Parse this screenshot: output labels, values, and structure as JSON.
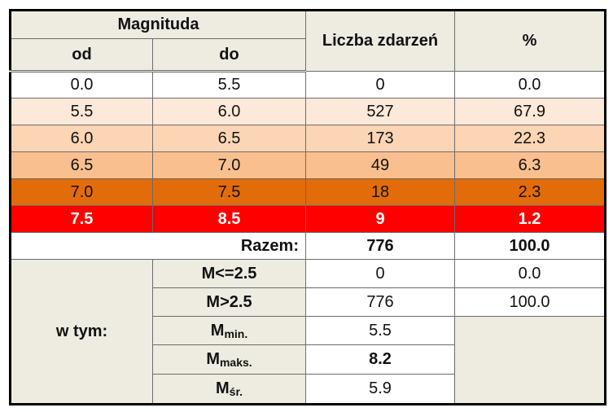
{
  "header": {
    "magnitude": "Magnituda",
    "from": "od",
    "to": "do",
    "count": "Liczba zdarzeń",
    "percent": "%"
  },
  "rows": [
    [
      "0.0",
      "5.5",
      "0",
      "0.0"
    ],
    [
      "5.5",
      "6.0",
      "527",
      "67.9"
    ],
    [
      "6.0",
      "6.5",
      "173",
      "22.3"
    ],
    [
      "6.5",
      "7.0",
      "49",
      "6.3"
    ],
    [
      "7.0",
      "7.5",
      "18",
      "2.3"
    ],
    [
      "7.5",
      "8.5",
      "9",
      "1.2"
    ]
  ],
  "total": {
    "label": "Razem:",
    "count": "776",
    "percent": "100.0"
  },
  "breakdown": {
    "label": "w tym:",
    "rows": [
      {
        "label": "M<=2.5",
        "count": "0",
        "percent": "0.0"
      },
      {
        "label": "M>2.5",
        "count": "776",
        "percent": "100.0"
      },
      {
        "label": "M",
        "sub": "min.",
        "value": "5.5"
      },
      {
        "label": "M",
        "sub": "maks.",
        "value": "8.2"
      },
      {
        "label": "M",
        "sub": "śr.",
        "value": "5.9"
      }
    ]
  }
}
